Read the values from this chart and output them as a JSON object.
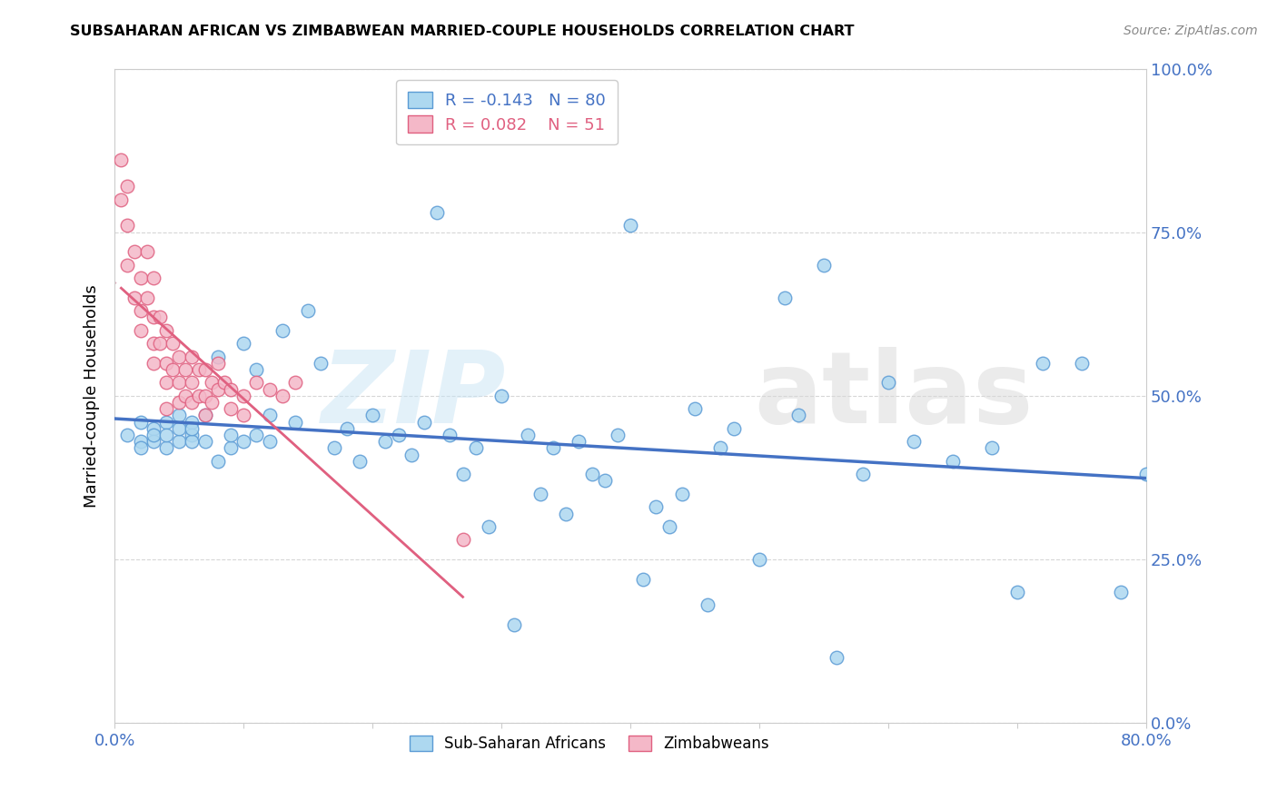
{
  "title": "SUBSAHARAN AFRICAN VS ZIMBABWEAN MARRIED-COUPLE HOUSEHOLDS CORRELATION CHART",
  "source": "Source: ZipAtlas.com",
  "ylabel": "Married-couple Households",
  "xmin": 0.0,
  "xmax": 0.8,
  "ymin": 0.0,
  "ymax": 1.0,
  "x_ticks": [
    0.0,
    0.1,
    0.2,
    0.3,
    0.4,
    0.5,
    0.6,
    0.7,
    0.8
  ],
  "y_ticks": [
    0.0,
    0.25,
    0.5,
    0.75,
    1.0
  ],
  "y_tick_labels": [
    "0.0%",
    "25.0%",
    "50.0%",
    "75.0%",
    "100.0%"
  ],
  "blue_R": -0.143,
  "blue_N": 80,
  "pink_R": 0.082,
  "pink_N": 51,
  "blue_dot_color": "#add8f0",
  "blue_edge_color": "#5b9bd5",
  "pink_dot_color": "#f4b8c8",
  "pink_edge_color": "#e06080",
  "blue_line_color": "#4472c4",
  "pink_line_color": "#e06080",
  "pink_dash_color": "#d4a0b0",
  "text_color": "#4472c4",
  "watermark_zip_color": "#b8d8f0",
  "watermark_atlas_color": "#d0d0d0",
  "legend_label_blue": "Sub-Saharan Africans",
  "legend_label_pink": "Zimbabweans",
  "blue_scatter_x": [
    0.01,
    0.02,
    0.02,
    0.02,
    0.03,
    0.03,
    0.03,
    0.04,
    0.04,
    0.04,
    0.05,
    0.05,
    0.05,
    0.06,
    0.06,
    0.06,
    0.06,
    0.07,
    0.07,
    0.08,
    0.08,
    0.09,
    0.09,
    0.1,
    0.1,
    0.11,
    0.11,
    0.12,
    0.12,
    0.13,
    0.14,
    0.15,
    0.16,
    0.17,
    0.18,
    0.19,
    0.2,
    0.21,
    0.22,
    0.23,
    0.24,
    0.25,
    0.26,
    0.27,
    0.28,
    0.29,
    0.3,
    0.31,
    0.32,
    0.33,
    0.34,
    0.35,
    0.36,
    0.37,
    0.38,
    0.39,
    0.4,
    0.41,
    0.42,
    0.43,
    0.44,
    0.45,
    0.46,
    0.47,
    0.48,
    0.5,
    0.52,
    0.53,
    0.55,
    0.56,
    0.58,
    0.6,
    0.62,
    0.65,
    0.68,
    0.7,
    0.72,
    0.75,
    0.78,
    0.8
  ],
  "blue_scatter_y": [
    0.44,
    0.46,
    0.43,
    0.42,
    0.45,
    0.43,
    0.44,
    0.46,
    0.42,
    0.44,
    0.47,
    0.43,
    0.45,
    0.46,
    0.44,
    0.43,
    0.45,
    0.47,
    0.43,
    0.56,
    0.4,
    0.42,
    0.44,
    0.58,
    0.43,
    0.54,
    0.44,
    0.47,
    0.43,
    0.6,
    0.46,
    0.63,
    0.55,
    0.42,
    0.45,
    0.4,
    0.47,
    0.43,
    0.44,
    0.41,
    0.46,
    0.78,
    0.44,
    0.38,
    0.42,
    0.3,
    0.5,
    0.15,
    0.44,
    0.35,
    0.42,
    0.32,
    0.43,
    0.38,
    0.37,
    0.44,
    0.76,
    0.22,
    0.33,
    0.3,
    0.35,
    0.48,
    0.18,
    0.42,
    0.45,
    0.25,
    0.65,
    0.47,
    0.7,
    0.1,
    0.38,
    0.52,
    0.43,
    0.4,
    0.42,
    0.2,
    0.55,
    0.55,
    0.2,
    0.38
  ],
  "pink_scatter_x": [
    0.005,
    0.005,
    0.01,
    0.01,
    0.01,
    0.015,
    0.015,
    0.02,
    0.02,
    0.02,
    0.025,
    0.025,
    0.03,
    0.03,
    0.03,
    0.03,
    0.035,
    0.035,
    0.04,
    0.04,
    0.04,
    0.04,
    0.045,
    0.045,
    0.05,
    0.05,
    0.05,
    0.055,
    0.055,
    0.06,
    0.06,
    0.06,
    0.065,
    0.065,
    0.07,
    0.07,
    0.07,
    0.075,
    0.075,
    0.08,
    0.08,
    0.085,
    0.09,
    0.09,
    0.1,
    0.1,
    0.11,
    0.12,
    0.13,
    0.14,
    0.27
  ],
  "pink_scatter_y": [
    0.86,
    0.8,
    0.82,
    0.76,
    0.7,
    0.72,
    0.65,
    0.68,
    0.63,
    0.6,
    0.72,
    0.65,
    0.68,
    0.62,
    0.58,
    0.55,
    0.62,
    0.58,
    0.6,
    0.55,
    0.52,
    0.48,
    0.58,
    0.54,
    0.56,
    0.52,
    0.49,
    0.54,
    0.5,
    0.56,
    0.52,
    0.49,
    0.54,
    0.5,
    0.54,
    0.5,
    0.47,
    0.52,
    0.49,
    0.55,
    0.51,
    0.52,
    0.51,
    0.48,
    0.5,
    0.47,
    0.52,
    0.51,
    0.5,
    0.52,
    0.28
  ]
}
